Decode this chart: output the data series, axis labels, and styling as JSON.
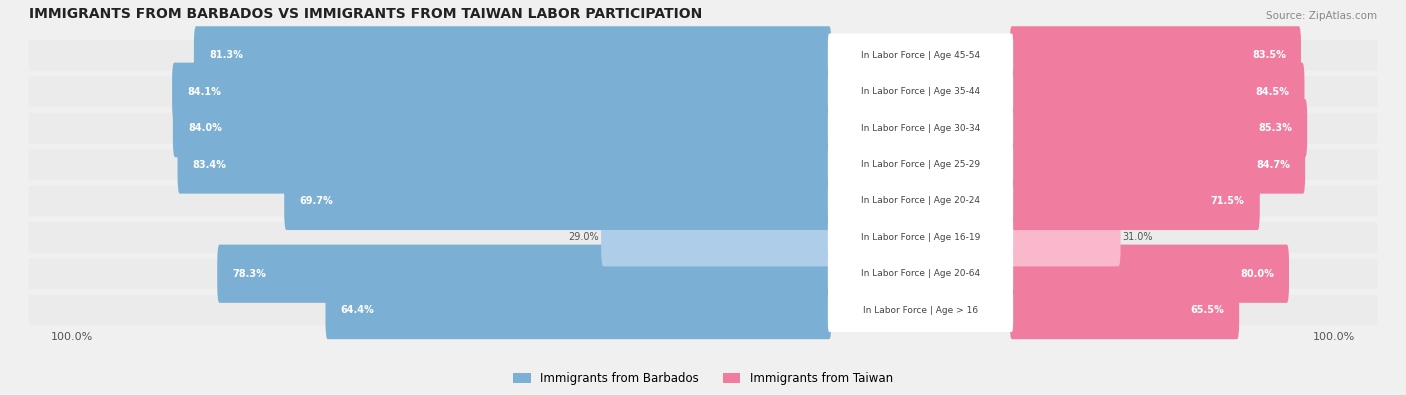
{
  "title": "IMMIGRANTS FROM BARBADOS VS IMMIGRANTS FROM TAIWAN LABOR PARTICIPATION",
  "source": "Source: ZipAtlas.com",
  "categories": [
    "In Labor Force | Age > 16",
    "In Labor Force | Age 20-64",
    "In Labor Force | Age 16-19",
    "In Labor Force | Age 20-24",
    "In Labor Force | Age 25-29",
    "In Labor Force | Age 30-34",
    "In Labor Force | Age 35-44",
    "In Labor Force | Age 45-54"
  ],
  "barbados_values": [
    64.4,
    78.3,
    29.0,
    69.7,
    83.4,
    84.0,
    84.1,
    81.3
  ],
  "taiwan_values": [
    65.5,
    80.0,
    31.0,
    71.5,
    84.7,
    85.3,
    84.5,
    83.5
  ],
  "barbados_color": "#7bafd4",
  "taiwan_color": "#f07ca0",
  "barbados_color_light": "#aecde8",
  "taiwan_color_light": "#f9b8cc",
  "bg_color": "#f0f0f0",
  "bar_bg_color": "#e8e8e8",
  "label_color_dark": "#555555",
  "max_value": 100.0,
  "bar_height": 0.6,
  "fig_width": 14.06,
  "fig_height": 3.95
}
